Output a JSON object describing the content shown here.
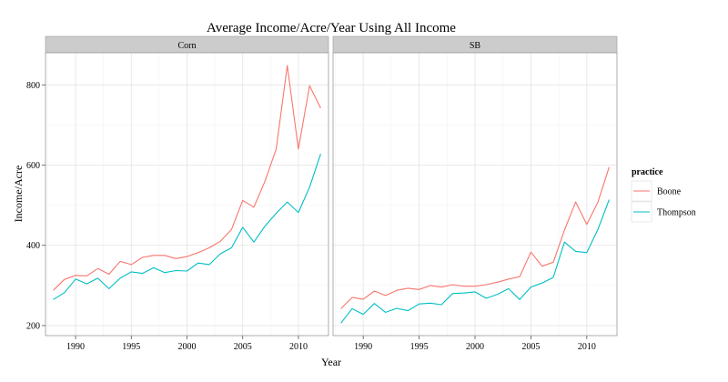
{
  "chart_data": {
    "type": "line",
    "title": "Average Income/Acre/Year Using All Income",
    "xlabel": "Year",
    "ylabel": "Income/Acre",
    "xlim": [
      1987.3,
      2012.7
    ],
    "ylim": [
      175,
      880
    ],
    "x_ticks": [
      1990,
      1995,
      2000,
      2005,
      2010
    ],
    "y_ticks": [
      200,
      400,
      600,
      800
    ],
    "grid": true,
    "legend_title": "practice",
    "legend_position": "right",
    "series_meta": [
      {
        "name": "Boone",
        "color": "#F8766D"
      },
      {
        "name": "Thompson",
        "color": "#00BFC4"
      }
    ],
    "panels": [
      {
        "label": "Corn",
        "series": [
          {
            "name": "Boone",
            "x": [
              1988,
              1989,
              1990,
              1991,
              1992,
              1993,
              1994,
              1995,
              1996,
              1997,
              1998,
              1999,
              2000,
              2001,
              2002,
              2003,
              2004,
              2005,
              2006,
              2007,
              2008,
              2009,
              2010,
              2011,
              2012
            ],
            "values": [
              288,
              315,
              325,
              324,
              342,
              328,
              360,
              352,
              370,
              375,
              375,
              367,
              372,
              382,
              394,
              410,
              440,
              512,
              495,
              560,
              640,
              848,
              640,
              798,
              742
            ]
          },
          {
            "name": "Thompson",
            "x": [
              1988,
              1989,
              1990,
              1991,
              1992,
              1993,
              1994,
              1995,
              1996,
              1997,
              1998,
              1999,
              2000,
              2001,
              2002,
              2003,
              2004,
              2005,
              2006,
              2007,
              2008,
              2009,
              2010,
              2011,
              2012
            ],
            "values": [
              265,
              282,
              316,
              304,
              318,
              292,
              318,
              334,
              330,
              344,
              332,
              337,
              336,
              356,
              352,
              379,
              394,
              445,
              408,
              448,
              480,
              508,
              482,
              545,
              628
            ]
          }
        ]
      },
      {
        "label": "SB",
        "series": [
          {
            "name": "Boone",
            "x": [
              1988,
              1989,
              1990,
              1991,
              1992,
              1993,
              1994,
              1995,
              1996,
              1997,
              1998,
              1999,
              2000,
              2001,
              2002,
              2003,
              2004,
              2005,
              2006,
              2007,
              2008,
              2009,
              2010,
              2011,
              2012
            ],
            "values": [
              242,
              270,
              266,
              286,
              275,
              288,
              293,
              290,
              300,
              296,
              302,
              298,
              298,
              302,
              308,
              316,
              322,
              383,
              348,
              358,
              438,
              508,
              452,
              508,
              595
            ]
          },
          {
            "name": "Thompson",
            "x": [
              1988,
              1989,
              1990,
              1991,
              1992,
              1993,
              1994,
              1995,
              1996,
              1997,
              1998,
              1999,
              2000,
              2001,
              2002,
              2003,
              2004,
              2005,
              2006,
              2007,
              2008,
              2009,
              2010,
              2011,
              2012
            ],
            "values": [
              206,
              242,
              228,
              255,
              233,
              243,
              237,
              254,
              256,
              252,
              280,
              281,
              284,
              268,
              278,
              292,
              265,
              296,
              306,
              320,
              408,
              385,
              382,
              440,
              514
            ]
          }
        ]
      }
    ]
  }
}
